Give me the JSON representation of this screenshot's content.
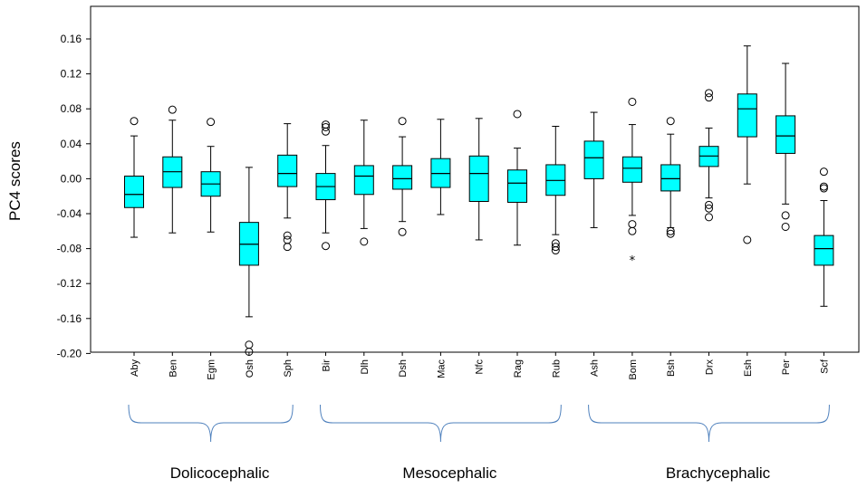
{
  "chart_data": {
    "type": "boxplot",
    "ylabel": "PC4 scores",
    "xlabel": "",
    "ylim": [
      -0.2,
      0.18
    ],
    "yticks": [
      "0.16",
      "0.12",
      "0.08",
      "0.04",
      "0.00",
      "-0.04",
      "-0.08",
      "-0.12",
      "-0.16",
      "-0.20"
    ],
    "ytick_values": [
      0.16,
      0.12,
      0.08,
      0.04,
      0.0,
      -0.04,
      -0.08,
      -0.12,
      -0.16,
      -0.2
    ],
    "box_color": "#00ffff",
    "categories": [
      "Aby",
      "Ben",
      "Egm",
      "Osh",
      "Sph",
      "Bir",
      "Dlh",
      "Dsh",
      "Mac",
      "Nfc",
      "Rag",
      "Rub",
      "Ash",
      "Bom",
      "Bsh",
      "Drx",
      "Esh",
      "Per",
      "Scf"
    ],
    "boxes": [
      {
        "name": "Aby",
        "whisker_low": -0.067,
        "q1": -0.033,
        "median": -0.018,
        "q3": 0.003,
        "whisker_high": 0.049,
        "outliers": [
          0.066
        ],
        "extremes": []
      },
      {
        "name": "Ben",
        "whisker_low": -0.062,
        "q1": -0.01,
        "median": 0.008,
        "q3": 0.025,
        "whisker_high": 0.067,
        "outliers": [
          0.079
        ],
        "extremes": []
      },
      {
        "name": "Egm",
        "whisker_low": -0.061,
        "q1": -0.02,
        "median": -0.006,
        "q3": 0.008,
        "whisker_high": 0.037,
        "outliers": [
          0.065
        ],
        "extremes": []
      },
      {
        "name": "Osh",
        "whisker_low": -0.158,
        "q1": -0.099,
        "median": -0.075,
        "q3": -0.05,
        "whisker_high": 0.013,
        "outliers": [
          -0.19,
          -0.198
        ],
        "extremes": []
      },
      {
        "name": "Sph",
        "whisker_low": -0.045,
        "q1": -0.009,
        "median": 0.006,
        "q3": 0.027,
        "whisker_high": 0.063,
        "outliers": [
          -0.065,
          -0.07,
          -0.078
        ],
        "extremes": []
      },
      {
        "name": "Bir",
        "whisker_low": -0.062,
        "q1": -0.024,
        "median": -0.009,
        "q3": 0.006,
        "whisker_high": 0.038,
        "outliers": [
          0.062,
          0.059,
          0.054,
          -0.077
        ],
        "extremes": []
      },
      {
        "name": "Dlh",
        "whisker_low": -0.057,
        "q1": -0.018,
        "median": 0.003,
        "q3": 0.015,
        "whisker_high": 0.067,
        "outliers": [
          -0.072
        ],
        "extremes": []
      },
      {
        "name": "Dsh",
        "whisker_low": -0.049,
        "q1": -0.012,
        "median": 0.0,
        "q3": 0.015,
        "whisker_high": 0.048,
        "outliers": [
          0.066,
          -0.061
        ],
        "extremes": []
      },
      {
        "name": "Mac",
        "whisker_low": -0.041,
        "q1": -0.01,
        "median": 0.006,
        "q3": 0.023,
        "whisker_high": 0.068,
        "outliers": [],
        "extremes": []
      },
      {
        "name": "Nfc",
        "whisker_low": -0.07,
        "q1": -0.026,
        "median": 0.006,
        "q3": 0.026,
        "whisker_high": 0.069,
        "outliers": [],
        "extremes": []
      },
      {
        "name": "Rag",
        "whisker_low": -0.076,
        "q1": -0.027,
        "median": -0.005,
        "q3": 0.01,
        "whisker_high": 0.035,
        "outliers": [
          0.074
        ],
        "extremes": []
      },
      {
        "name": "Rub",
        "whisker_low": -0.064,
        "q1": -0.019,
        "median": -0.002,
        "q3": 0.016,
        "whisker_high": 0.06,
        "outliers": [
          -0.074,
          -0.078,
          -0.082
        ],
        "extremes": []
      },
      {
        "name": "Ash",
        "whisker_low": -0.056,
        "q1": 0.0,
        "median": 0.024,
        "q3": 0.043,
        "whisker_high": 0.076,
        "outliers": [],
        "extremes": []
      },
      {
        "name": "Bom",
        "whisker_low": -0.042,
        "q1": -0.004,
        "median": 0.012,
        "q3": 0.025,
        "whisker_high": 0.062,
        "outliers": [
          0.088,
          -0.052,
          -0.06
        ],
        "extremes": [
          -0.093
        ]
      },
      {
        "name": "Bsh",
        "whisker_low": -0.056,
        "q1": -0.014,
        "median": 0.0,
        "q3": 0.016,
        "whisker_high": 0.051,
        "outliers": [
          0.066,
          -0.06,
          -0.063
        ],
        "extremes": []
      },
      {
        "name": "Drx",
        "whisker_low": -0.022,
        "q1": 0.014,
        "median": 0.026,
        "q3": 0.037,
        "whisker_high": 0.058,
        "outliers": [
          0.098,
          0.093,
          -0.03,
          -0.034,
          -0.044
        ],
        "extremes": []
      },
      {
        "name": "Esh",
        "whisker_low": -0.006,
        "q1": 0.048,
        "median": 0.08,
        "q3": 0.097,
        "whisker_high": 0.152,
        "outliers": [
          -0.07
        ],
        "extremes": []
      },
      {
        "name": "Per",
        "whisker_low": -0.029,
        "q1": 0.029,
        "median": 0.049,
        "q3": 0.072,
        "whisker_high": 0.132,
        "outliers": [
          -0.042,
          -0.055
        ],
        "extremes": []
      },
      {
        "name": "Scf",
        "whisker_low": -0.146,
        "q1": -0.099,
        "median": -0.08,
        "q3": -0.065,
        "whisker_high": -0.025,
        "outliers": [
          0.008,
          -0.009,
          -0.011
        ],
        "extremes": []
      }
    ],
    "groups": [
      {
        "label": "Dolicocephalic",
        "first": 0,
        "last": 4
      },
      {
        "label": "Mesocephalic",
        "first": 5,
        "last": 11
      },
      {
        "label": "Brachycephalic",
        "first": 12,
        "last": 18
      }
    ]
  }
}
